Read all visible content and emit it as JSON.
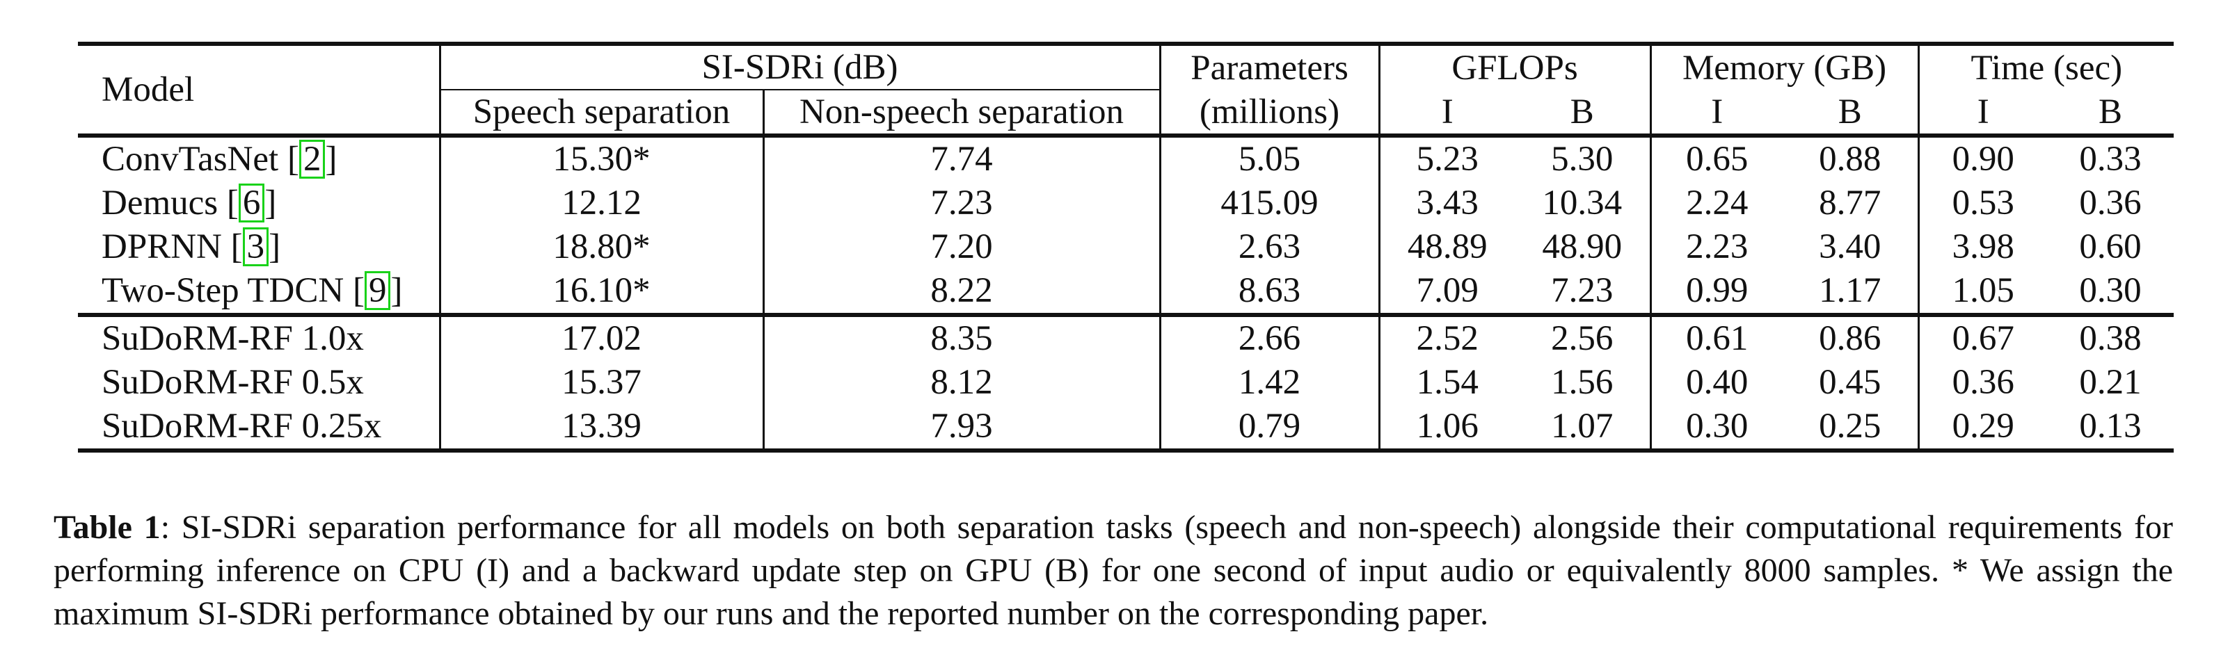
{
  "table": {
    "header": {
      "model": "Model",
      "si_sdri": "SI-SDRi (dB)",
      "speech_sep": "Speech separation",
      "nonspeech_sep": "Non-speech separation",
      "params_l1": "Parameters",
      "params_l2": "(millions)",
      "gflops": "GFLOPs",
      "memory": "Memory (GB)",
      "time": "Time (sec)",
      "i": "I",
      "b": "B"
    },
    "baseline_rows": [
      {
        "model": "ConvTasNet [",
        "cite": "2",
        "close": "]",
        "speech": "15.30*",
        "nonspeech": "7.74",
        "params": "5.05",
        "gflops_i": "5.23",
        "gflops_b": "5.30",
        "mem_i": "0.65",
        "mem_b": "0.88",
        "time_i": "0.90",
        "time_b": "0.33"
      },
      {
        "model": "Demucs [",
        "cite": "6",
        "close": "]",
        "speech": "12.12",
        "nonspeech": "7.23",
        "params": "415.09",
        "gflops_i": "3.43",
        "gflops_b": "10.34",
        "mem_i": "2.24",
        "mem_b": "8.77",
        "time_i": "0.53",
        "time_b": "0.36"
      },
      {
        "model": "DPRNN [",
        "cite": "3",
        "close": "]",
        "speech": "18.80*",
        "nonspeech": "7.20",
        "params": "2.63",
        "gflops_i": "48.89",
        "gflops_b": "48.90",
        "mem_i": "2.23",
        "mem_b": "3.40",
        "time_i": "3.98",
        "time_b": "0.60"
      },
      {
        "model": "Two-Step TDCN [",
        "cite": "9",
        "close": "]",
        "speech": "16.10*",
        "nonspeech": "8.22",
        "params": "8.63",
        "gflops_i": "7.09",
        "gflops_b": "7.23",
        "mem_i": "0.99",
        "mem_b": "1.17",
        "time_i": "1.05",
        "time_b": "0.30"
      }
    ],
    "sudorm_rows": [
      {
        "model": "SuDoRM-RF 1.0x",
        "speech": "17.02",
        "nonspeech": "8.35",
        "params": "2.66",
        "gflops_i": "2.52",
        "gflops_b": "2.56",
        "mem_i": "0.61",
        "mem_b": "0.86",
        "time_i": "0.67",
        "time_b": "0.38"
      },
      {
        "model": "SuDoRM-RF 0.5x",
        "speech": "15.37",
        "nonspeech": "8.12",
        "params": "1.42",
        "gflops_i": "1.54",
        "gflops_b": "1.56",
        "mem_i": "0.40",
        "mem_b": "0.45",
        "time_i": "0.36",
        "time_b": "0.21"
      },
      {
        "model": "SuDoRM-RF 0.25x",
        "speech": "13.39",
        "nonspeech": "7.93",
        "params": "0.79",
        "gflops_i": "1.06",
        "gflops_b": "1.07",
        "mem_i": "0.30",
        "mem_b": "0.25",
        "time_i": "0.29",
        "time_b": "0.13"
      }
    ]
  },
  "caption": {
    "label": "Table 1",
    "text": ":  SI-SDRi separation performance for all models on both separation tasks (speech and non-speech) alongside their computational requirements for performing inference on CPU (I) and a backward update step on GPU (B) for one second of input audio or equivalently 8000 samples. * We assign the maximum SI-SDRi performance obtained by our runs and the reported number on the corresponding paper."
  }
}
